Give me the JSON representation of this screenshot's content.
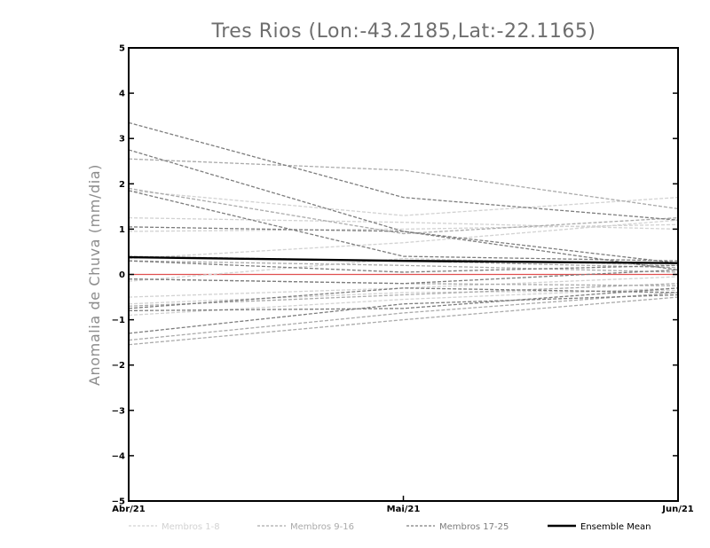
{
  "chart_data": {
    "type": "line",
    "title": "Tres Rios (Lon:-43.2185,Lat:-22.1165)",
    "ylabel": "Anomalia de Chuva (mm/dia)",
    "xlabel": "",
    "categories": [
      "Abr/21",
      "Mai/21",
      "Jun/21"
    ],
    "ylim": [
      -5,
      5
    ],
    "yticks": [
      -5,
      -4,
      -3,
      -2,
      -1,
      0,
      1,
      2,
      3,
      4,
      5
    ],
    "grid": false,
    "legend_position": "bottom",
    "legend": [
      {
        "label": "Membros 1-8",
        "color": "#d2d2d2",
        "style": "dashed"
      },
      {
        "label": "Membros 9-16",
        "color": "#aaaaaa",
        "style": "dashed"
      },
      {
        "label": "Membros 17-25",
        "color": "#7d7d7d",
        "style": "dashed"
      },
      {
        "label": "Ensemble Mean",
        "color": "#000000",
        "style": "solid"
      }
    ],
    "zero_line_color": "#e05050",
    "series": [
      {
        "group": 1,
        "values": [
          1.85,
          1.3,
          1.7
        ]
      },
      {
        "group": 1,
        "values": [
          1.25,
          1.15,
          1.0
        ]
      },
      {
        "group": 1,
        "values": [
          0.35,
          0.7,
          1.2
        ]
      },
      {
        "group": 1,
        "values": [
          -0.15,
          0.35,
          0.2
        ]
      },
      {
        "group": 1,
        "values": [
          -0.5,
          -0.3,
          -0.05
        ]
      },
      {
        "group": 1,
        "values": [
          -0.65,
          -0.4,
          -0.35
        ]
      },
      {
        "group": 1,
        "values": [
          0.95,
          1.0,
          1.1
        ]
      },
      {
        "group": 1,
        "values": [
          -0.9,
          -0.55,
          -0.3
        ]
      },
      {
        "group": 2,
        "values": [
          2.55,
          2.3,
          1.45
        ]
      },
      {
        "group": 2,
        "values": [
          1.9,
          0.9,
          1.25
        ]
      },
      {
        "group": 2,
        "values": [
          0.3,
          0.2,
          0.05
        ]
      },
      {
        "group": 2,
        "values": [
          -0.1,
          -0.2,
          -0.25
        ]
      },
      {
        "group": 2,
        "values": [
          -1.45,
          -0.85,
          -0.4
        ]
      },
      {
        "group": 2,
        "values": [
          -1.55,
          -1.0,
          -0.5
        ]
      },
      {
        "group": 2,
        "values": [
          0.4,
          0.3,
          0.15
        ]
      },
      {
        "group": 2,
        "values": [
          -0.7,
          -0.45,
          -0.2
        ]
      },
      {
        "group": 3,
        "values": [
          3.35,
          1.7,
          1.2
        ]
      },
      {
        "group": 3,
        "values": [
          2.75,
          0.95,
          0.1
        ]
      },
      {
        "group": 3,
        "values": [
          1.85,
          0.4,
          0.3
        ]
      },
      {
        "group": 3,
        "values": [
          1.05,
          0.95,
          0.25
        ]
      },
      {
        "group": 3,
        "values": [
          0.3,
          0.05,
          0.2
        ]
      },
      {
        "group": 3,
        "values": [
          -0.1,
          -0.2,
          0.1
        ]
      },
      {
        "group": 3,
        "values": [
          -0.8,
          -0.75,
          -0.3
        ]
      },
      {
        "group": 3,
        "values": [
          -1.3,
          -0.65,
          -0.45
        ]
      },
      {
        "group": 3,
        "values": [
          -0.75,
          -0.3,
          -0.4
        ]
      }
    ],
    "ensemble_mean": {
      "values": [
        0.38,
        0.3,
        0.25
      ]
    }
  }
}
